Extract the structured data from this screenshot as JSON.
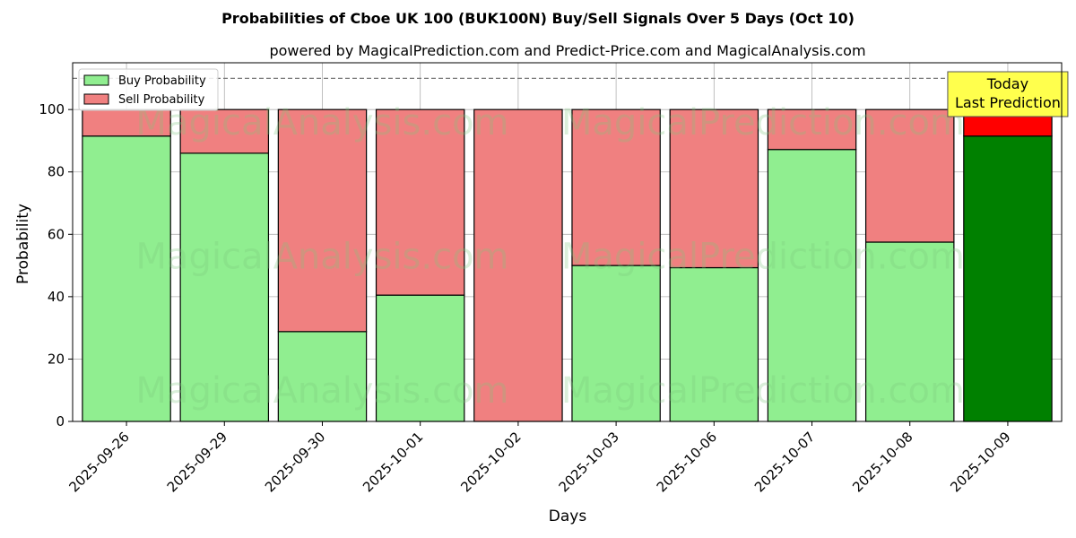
{
  "chart_data": {
    "type": "bar",
    "stacked": true,
    "title": "Probabilities of Cboe UK 100 (BUK100N) Buy/Sell Signals Over 5 Days (Oct 10)",
    "subtitle": "powered by MagicalPrediction.com and Predict-Price.com and MagicalAnalysis.com",
    "xlabel": "Days",
    "ylabel": "Probability",
    "ylim": [
      0,
      115
    ],
    "yticks": [
      0,
      20,
      40,
      60,
      80,
      100
    ],
    "reference_line": 110,
    "grid": true,
    "legend_position": "top-left",
    "categories": [
      "2025-09-26",
      "2025-09-29",
      "2025-09-30",
      "2025-10-01",
      "2025-10-02",
      "2025-10-03",
      "2025-10-06",
      "2025-10-07",
      "2025-10-08",
      "2025-10-09"
    ],
    "series": [
      {
        "name": "Buy Probability",
        "color": "#90ee90",
        "highlight_color": "#008000",
        "values": [
          91.5,
          86,
          28.8,
          40.5,
          0,
          50,
          49.3,
          87.2,
          57.5,
          91.5
        ]
      },
      {
        "name": "Sell Probability",
        "color": "#f08080",
        "highlight_color": "#ff0000",
        "values": [
          8.5,
          14,
          71.2,
          59.5,
          100,
          50,
          50.7,
          12.8,
          42.5,
          8.5
        ]
      }
    ],
    "highlight_index": 9,
    "annotation": {
      "lines": [
        "Today",
        "Last Prediction"
      ],
      "background": "#ffff4d"
    },
    "watermarks": [
      "MagicalAnalysis.com",
      "MagicalPrediction.com"
    ]
  }
}
